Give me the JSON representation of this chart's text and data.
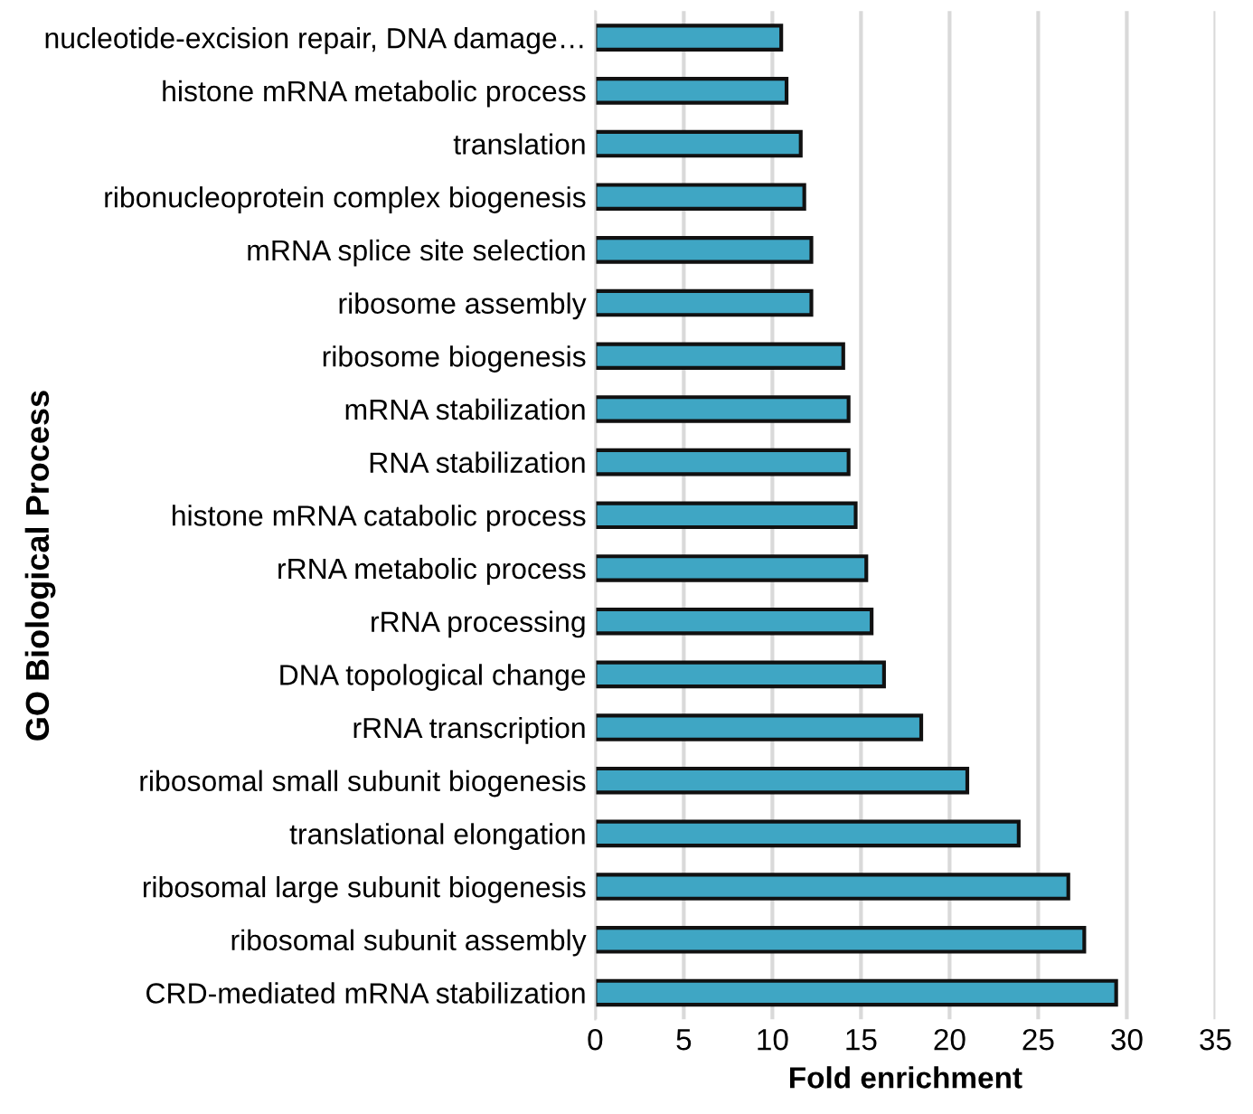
{
  "chart_data": {
    "type": "bar",
    "orientation": "horizontal",
    "xlabel": "Fold enrichment",
    "ylabel": "GO Biological Process",
    "categories": [
      "nucleotide-excision repair, DNA damage…",
      "histone mRNA metabolic process",
      "translation",
      "ribonucleoprotein complex biogenesis",
      "mRNA splice site selection",
      "ribosome assembly",
      "ribosome biogenesis",
      "mRNA stabilization",
      "RNA stabilization",
      "histone mRNA catabolic process",
      "rRNA metabolic process",
      "rRNA processing",
      "DNA topological change",
      "rRNA transcription",
      "ribosomal small subunit biogenesis",
      "translational elongation",
      "ribosomal large subunit biogenesis",
      "ribosomal subunit assembly",
      "CRD-mediated mRNA stabilization"
    ],
    "values": [
      10.5,
      10.8,
      11.6,
      11.8,
      12.2,
      12.2,
      14.0,
      14.3,
      14.3,
      14.7,
      15.3,
      15.6,
      16.3,
      18.4,
      21.0,
      23.9,
      26.7,
      27.6,
      29.4
    ],
    "color": "#3fa6c4",
    "xlim": [
      0,
      35
    ],
    "xticks": [
      0,
      5,
      10,
      15,
      20,
      25,
      30,
      35
    ],
    "grid": "x"
  }
}
